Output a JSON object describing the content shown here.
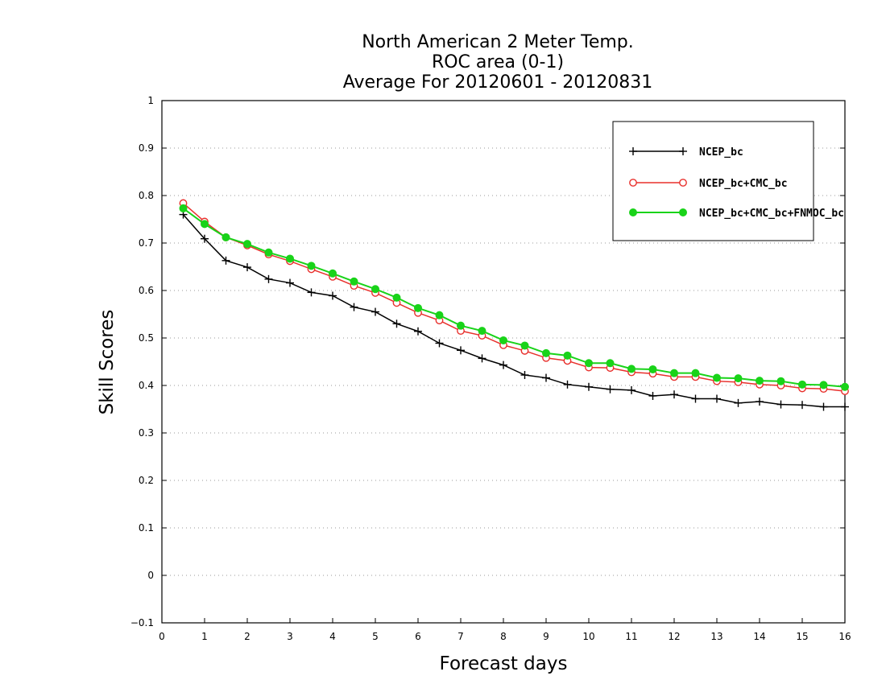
{
  "chart_data": {
    "type": "line",
    "title_lines": [
      "North American 2 Meter Temp.",
      "ROC area (0-1)",
      "Average For 20120601 - 20120831"
    ],
    "xlabel": "Forecast days",
    "ylabel": "Skill Scores",
    "xlim": [
      0,
      16
    ],
    "ylim": [
      -0.1,
      1
    ],
    "xticks": [
      "0",
      "1",
      "2",
      "3",
      "4",
      "5",
      "6",
      "7",
      "8",
      "9",
      "10",
      "11",
      "12",
      "13",
      "14",
      "15",
      "16"
    ],
    "yticks": [
      "-0.1",
      "0",
      "0.1",
      "0.2",
      "0.3",
      "0.4",
      "0.5",
      "0.6",
      "0.7",
      "0.8",
      "0.9",
      "1"
    ],
    "grid": "horizontal-dotted",
    "legend_position": "top-right",
    "x": [
      0.5,
      1,
      1.5,
      2,
      2.5,
      3,
      3.5,
      4,
      4.5,
      5,
      5.5,
      6,
      6.5,
      7,
      7.5,
      8,
      8.5,
      9,
      9.5,
      10,
      10.5,
      11,
      11.5,
      12,
      12.5,
      13,
      13.5,
      14,
      14.5,
      15,
      15.5,
      16
    ],
    "series": [
      {
        "name": "NCEP_bc",
        "color": "#000000",
        "marker": "plus",
        "values": [
          0.76,
          0.709,
          0.663,
          0.649,
          0.624,
          0.616,
          0.596,
          0.589,
          0.565,
          0.555,
          0.53,
          0.514,
          0.489,
          0.474,
          0.457,
          0.443,
          0.422,
          0.416,
          0.402,
          0.397,
          0.392,
          0.39,
          0.378,
          0.381,
          0.372,
          0.372,
          0.363,
          0.366,
          0.36,
          0.359,
          0.355,
          0.355
        ]
      },
      {
        "name": "NCEP_bc+CMC_bc",
        "color": "#e8302c",
        "marker": "open-circle",
        "values": [
          0.784,
          0.745,
          0.712,
          0.695,
          0.676,
          0.662,
          0.645,
          0.629,
          0.61,
          0.595,
          0.574,
          0.553,
          0.537,
          0.515,
          0.505,
          0.485,
          0.473,
          0.458,
          0.452,
          0.438,
          0.437,
          0.428,
          0.425,
          0.418,
          0.418,
          0.409,
          0.407,
          0.402,
          0.4,
          0.394,
          0.393,
          0.388
        ]
      },
      {
        "name": "NCEP_bc+CMC_bc+FNMOC_bc",
        "color": "#19d319",
        "marker": "filled-circle",
        "values": [
          0.773,
          0.74,
          0.712,
          0.698,
          0.68,
          0.667,
          0.652,
          0.636,
          0.619,
          0.603,
          0.585,
          0.563,
          0.548,
          0.526,
          0.515,
          0.495,
          0.484,
          0.468,
          0.463,
          0.447,
          0.447,
          0.435,
          0.434,
          0.426,
          0.426,
          0.416,
          0.415,
          0.41,
          0.409,
          0.402,
          0.401,
          0.397
        ]
      }
    ]
  }
}
